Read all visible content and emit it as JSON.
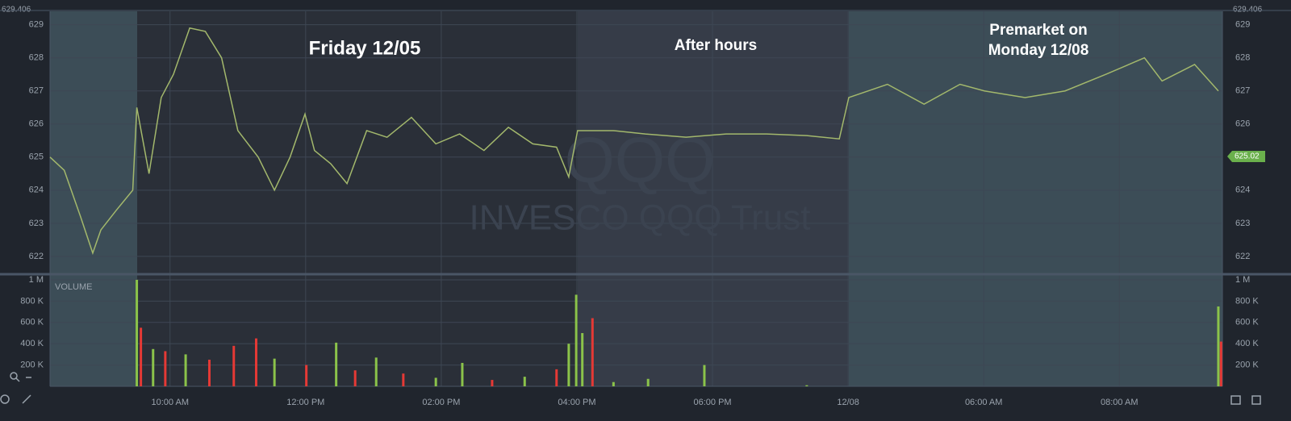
{
  "chart_data": {
    "type": "line",
    "title_annotations": [
      "Friday 12/05",
      "After hours",
      "Premarket on",
      "Monday 12/08"
    ],
    "watermark": [
      "QQQ",
      "INVESCO QQQ Trust"
    ],
    "volume_label": "VOLUME",
    "last_price": 625.02,
    "xlim": [
      0.23,
      17.52
    ],
    "xticks": [
      {
        "value": 2,
        "label": "10:00 AM"
      },
      {
        "value": 4,
        "label": "12:00 PM"
      },
      {
        "value": 6,
        "label": "02:00 PM"
      },
      {
        "value": 8,
        "label": "04:00 PM"
      },
      {
        "value": 10,
        "label": "06:00 PM"
      },
      {
        "value": 12,
        "label": "12/08"
      },
      {
        "value": 14,
        "label": "06:00 AM"
      },
      {
        "value": 16,
        "label": "08:00 AM"
      }
    ],
    "ylim": [
      621.51,
      629.406
    ],
    "yticks": [
      622,
      623,
      624,
      625,
      626,
      627,
      628,
      629
    ],
    "grid": true,
    "series": [
      {
        "color": "#a3b86c",
        "x": [
          0.23,
          0.44,
          0.68,
          0.86,
          0.98,
          1.21,
          1.45,
          1.51,
          1.69,
          1.87,
          2.05,
          2.29,
          2.52,
          2.76,
          3.0,
          3.3,
          3.54,
          3.77,
          3.99,
          4.13,
          4.37,
          4.61,
          4.9,
          5.2,
          5.56,
          5.92,
          6.27,
          6.63,
          6.99,
          7.35,
          7.7,
          7.88,
          8.01,
          8.54,
          9.01,
          9.61,
          10.2,
          10.8,
          11.39,
          11.87,
          12.01,
          12.58,
          13.12,
          13.65,
          14.01,
          14.61,
          15.2,
          15.8,
          16.37,
          16.63,
          17.11,
          17.46
        ],
        "values": [
          625.0,
          624.6,
          623.2,
          622.1,
          622.8,
          623.4,
          624.0,
          626.5,
          624.5,
          626.8,
          627.5,
          628.9,
          628.8,
          628.0,
          625.8,
          625.0,
          624.0,
          625.0,
          626.3,
          625.2,
          624.8,
          624.2,
          625.8,
          625.6,
          626.2,
          625.4,
          625.7,
          625.2,
          625.9,
          625.4,
          625.3,
          624.4,
          625.8,
          625.8,
          625.7,
          625.6,
          625.7,
          625.7,
          625.65,
          625.55,
          626.8,
          627.2,
          626.6,
          627.2,
          627.0,
          626.8,
          627.0,
          627.5,
          628.0,
          627.3,
          627.8,
          627.0
        ]
      }
    ],
    "volume": {
      "ylim": [
        0,
        1030000
      ],
      "yticks": [
        {
          "value": 200000,
          "label": "200 K"
        },
        {
          "value": 400000,
          "label": "400 K"
        },
        {
          "value": 600000,
          "label": "600 K"
        },
        {
          "value": 800000,
          "label": "800 K"
        },
        {
          "value": 1000000,
          "label": "1 M"
        }
      ],
      "up_color": "#8bc34a",
      "down_color": "#e53935",
      "x": [
        1.51,
        1.57,
        1.75,
        1.93,
        2.23,
        2.58,
        2.94,
        3.27,
        3.54,
        4.01,
        4.45,
        4.73,
        5.04,
        5.44,
        5.92,
        6.31,
        6.75,
        7.23,
        7.7,
        7.88,
        7.99,
        8.08,
        8.23,
        8.54,
        9.05,
        9.88,
        11.39,
        17.46,
        17.5
      ],
      "values": [
        1000000,
        550000,
        350000,
        330000,
        300000,
        250000,
        380000,
        450000,
        260000,
        200000,
        410000,
        150000,
        270000,
        120000,
        80000,
        220000,
        60000,
        90000,
        160000,
        400000,
        860000,
        500000,
        640000,
        40000,
        70000,
        200000,
        10000,
        750000,
        420000
      ],
      "up": [
        true,
        false,
        true,
        false,
        true,
        false,
        false,
        false,
        true,
        false,
        true,
        false,
        true,
        false,
        true,
        true,
        false,
        true,
        false,
        true,
        true,
        true,
        false,
        true,
        true,
        true,
        true,
        true,
        false
      ]
    }
  }
}
